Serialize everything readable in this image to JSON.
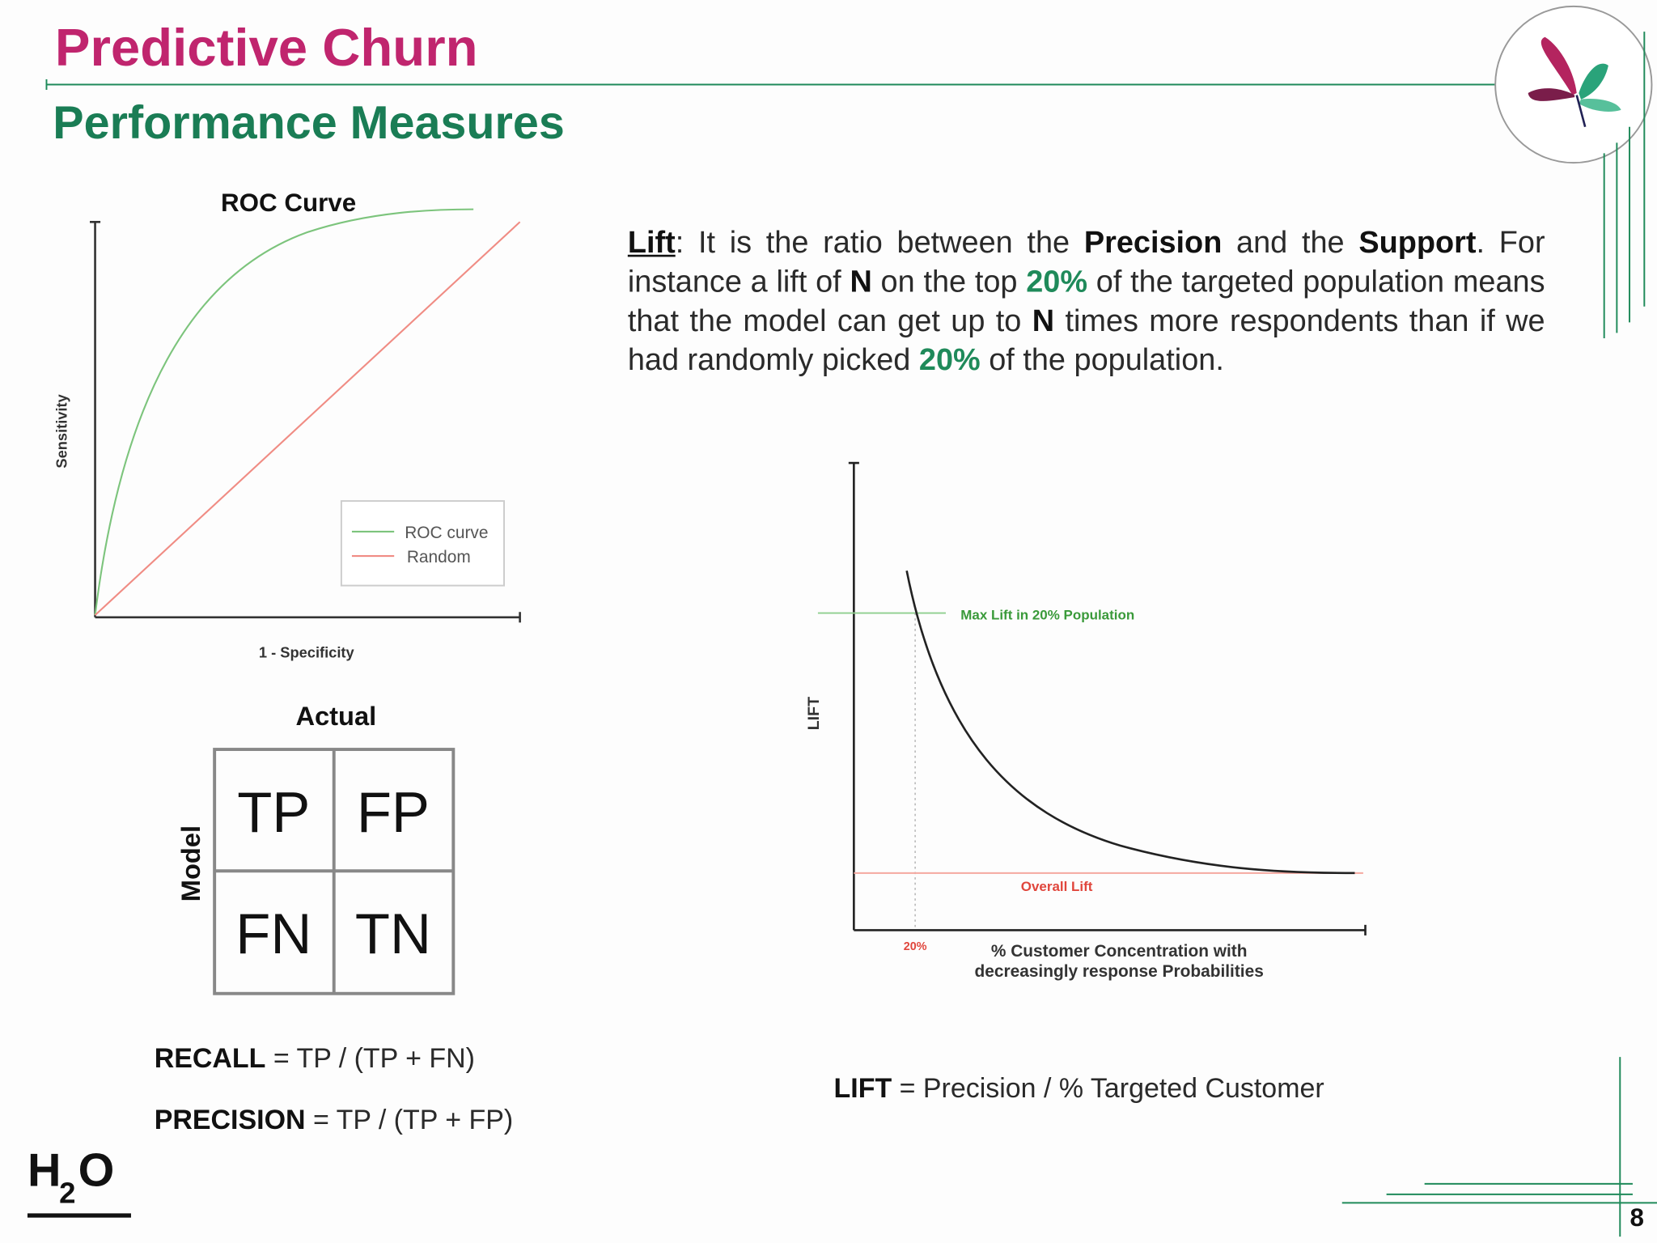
{
  "header": {
    "title": "Predictive Churn",
    "subtitle": "Performance Measures"
  },
  "roc": {
    "title": "ROC Curve",
    "y_label": "Sensitivity",
    "x_label": "1 - Specificity",
    "legend": [
      "ROC curve",
      "Random"
    ]
  },
  "confusion": {
    "column_label": "Actual",
    "row_label": "Model",
    "cells": [
      [
        "TP",
        "FP"
      ],
      [
        "FN",
        "TN"
      ]
    ]
  },
  "formulas": [
    [
      "RECALL",
      " = TP / (TP + FN)"
    ],
    [
      "PRECISION",
      " = TP / (TP + FP)"
    ]
  ],
  "lift_definition": [
    "Lift",
    ": It is the ratio between the ",
    "Precision",
    " and the ",
    "Support",
    ". For instance a lift of ",
    "N",
    " on the top ",
    "20%",
    " of the targeted population means that the model can get up to ",
    "N",
    " times more respondents than if we had randomly picked ",
    "20%",
    " of the population."
  ],
  "lift_chart": {
    "y_label": "LIFT",
    "max_label": "Max Lift in 20% Population",
    "overall_label": "Overall Lift",
    "x_tick": "20%",
    "x_label": [
      "% Customer Concentration with",
      "decreasingly response Probabilities"
    ]
  },
  "lift_formula": [
    "LIFT",
    " = Precision / % Targeted Customer"
  ],
  "logo": [
    "H",
    "2",
    "O"
  ],
  "page_number": "8"
}
